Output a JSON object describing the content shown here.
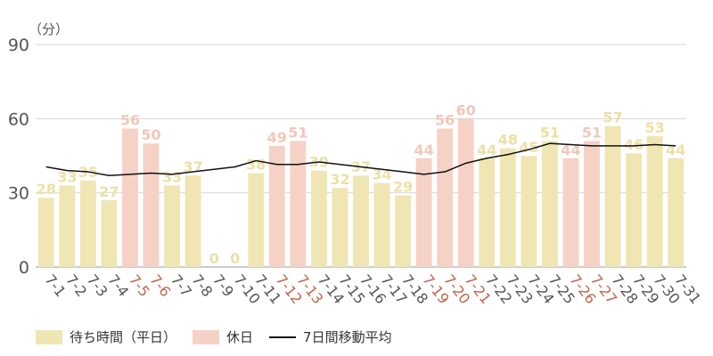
{
  "chart_data": {
    "type": "bar",
    "unit_label": "（分）",
    "ylim": [
      0,
      90
    ],
    "yticks": [
      0,
      30,
      60,
      90
    ],
    "grid": true,
    "categories": [
      "7-1",
      "7-2",
      "7-3",
      "7-4",
      "7-5",
      "7-6",
      "7-7",
      "7-8",
      "7-9",
      "7-10",
      "7-11",
      "7-12",
      "7-13",
      "7-14",
      "7-15",
      "7-16",
      "7-17",
      "7-18",
      "7-19",
      "7-20",
      "7-21",
      "7-22",
      "7-23",
      "7-24",
      "7-25",
      "7-26",
      "7-27",
      "7-28",
      "7-29",
      "7-30",
      "7-31"
    ],
    "holiday_categories": [
      "7-5",
      "7-6",
      "7-12",
      "7-13",
      "7-19",
      "7-20",
      "7-21",
      "7-26",
      "7-27"
    ],
    "series": [
      {
        "name": "待ち時間（平日）",
        "type": "bar",
        "color": "#f0e6b4",
        "label_color": "#ede0a6",
        "values": [
          28,
          33,
          35,
          27,
          null,
          null,
          33,
          37,
          0,
          0,
          38,
          null,
          null,
          39,
          32,
          37,
          34,
          29,
          null,
          null,
          null,
          44,
          48,
          45,
          51,
          null,
          null,
          57,
          46,
          53,
          44
        ]
      },
      {
        "name": "休日",
        "type": "bar",
        "color": "#f6d2c6",
        "label_color": "#f1c7b8",
        "values": [
          null,
          null,
          null,
          null,
          56,
          50,
          null,
          null,
          null,
          null,
          null,
          49,
          51,
          null,
          null,
          null,
          null,
          null,
          44,
          56,
          60,
          null,
          null,
          null,
          null,
          44,
          51,
          null,
          null,
          null,
          null
        ]
      },
      {
        "name": "7日間移動平均",
        "type": "line",
        "color": "#111111",
        "values": [
          40.5,
          39,
          38.5,
          37,
          37.5,
          38,
          37.5,
          38.5,
          39.5,
          40.5,
          43,
          41.5,
          41.5,
          42.5,
          41.5,
          40.5,
          39.5,
          38.5,
          37.5,
          38.5,
          42,
          44,
          45.5,
          47.5,
          50,
          49.5,
          49,
          49,
          49,
          49.5,
          49
        ]
      }
    ],
    "category_label_color": "#555555",
    "holiday_label_color": "#c0654a",
    "axis_text_color": "#555555"
  },
  "legend": {
    "weekday": "待ち時間（平日）",
    "holiday": "休日",
    "average": "7日間移動平均"
  }
}
